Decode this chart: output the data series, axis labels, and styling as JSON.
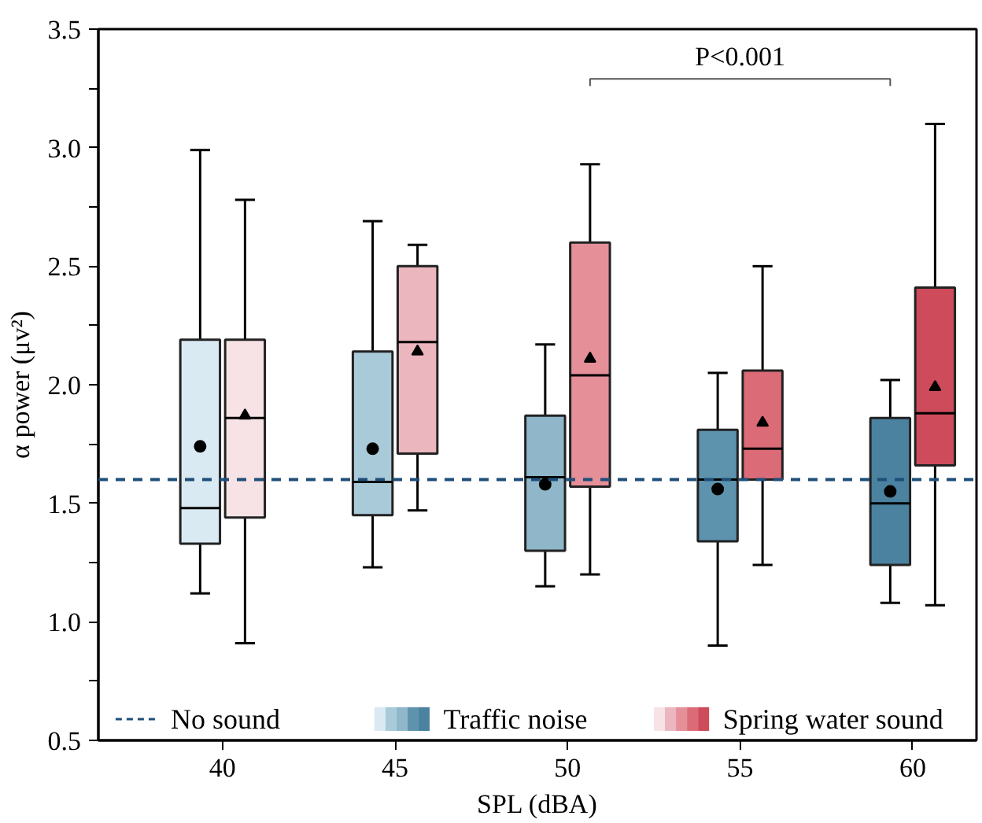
{
  "chart_data": {
    "type": "box",
    "xlabel": "SPL (dBA)",
    "ylabel": "α power (μv²)",
    "categories": [
      "40",
      "45",
      "50",
      "55",
      "60"
    ],
    "ylim": [
      0.5,
      3.5
    ],
    "yticks": [
      0.5,
      {
        "value": 0.75,
        "label": null
      },
      {
        "value": 1,
        "label": "1.0"
      },
      {
        "value": 1.25,
        "label": null
      },
      1.5,
      {
        "value": 1.75,
        "label": null
      },
      {
        "value": 2,
        "label": "2.0"
      },
      {
        "value": 2.25,
        "label": null
      },
      2.5,
      {
        "value": 2.75,
        "label": null
      },
      {
        "value": 3,
        "label": "3.0"
      },
      {
        "value": 3.25,
        "label": null
      },
      3.5
    ],
    "grid": false,
    "legend": "bottom",
    "ref_lines": [
      {
        "axis": "y",
        "value": 1.6,
        "label": "No sound",
        "color": "#1f4e79",
        "line_style": "dashed"
      }
    ],
    "annotations": [
      "P<0.001"
    ],
    "series": [
      {
        "name": "Traffic noise",
        "marker": "circle",
        "colors": [
          "#d9eaf2",
          "#a9cad8",
          "#8fb6c9",
          "#5d93ad",
          "#4a82a0"
        ],
        "boxes": [
          {
            "low": 1.12,
            "q1": 1.33,
            "median": 1.48,
            "q3": 2.19,
            "high": 2.99,
            "mean": 1.74
          },
          {
            "low": 1.23,
            "q1": 1.45,
            "median": 1.59,
            "q3": 2.14,
            "high": 2.69,
            "mean": 1.73
          },
          {
            "low": 1.15,
            "q1": 1.3,
            "median": 1.61,
            "q3": 1.87,
            "high": 2.17,
            "mean": 1.58
          },
          {
            "low": 0.9,
            "q1": 1.34,
            "median": 1.6,
            "q3": 1.81,
            "high": 2.05,
            "mean": 1.56
          },
          {
            "low": 1.08,
            "q1": 1.24,
            "median": 1.5,
            "q3": 1.86,
            "high": 2.02,
            "mean": 1.55
          }
        ]
      },
      {
        "name": "Spring water sound",
        "marker": "triangle",
        "colors": [
          "#f7e3e5",
          "#ecb6be",
          "#e58f99",
          "#dc6b78",
          "#cd4b5a"
        ],
        "boxes": [
          {
            "low": 0.91,
            "q1": 1.44,
            "median": 1.86,
            "q3": 2.19,
            "high": 2.78,
            "mean": 1.87
          },
          {
            "low": 1.47,
            "q1": 1.71,
            "median": 2.18,
            "q3": 2.5,
            "high": 2.59,
            "mean": 2.14
          },
          {
            "low": 1.2,
            "q1": 1.57,
            "median": 2.04,
            "q3": 2.6,
            "high": 2.93,
            "mean": 2.11
          },
          {
            "low": 1.24,
            "q1": 1.6,
            "median": 1.73,
            "q3": 2.06,
            "high": 2.5,
            "mean": 1.84
          },
          {
            "low": 1.07,
            "q1": 1.66,
            "median": 1.88,
            "q3": 2.41,
            "high": 3.1,
            "mean": 1.99
          }
        ]
      }
    ]
  }
}
